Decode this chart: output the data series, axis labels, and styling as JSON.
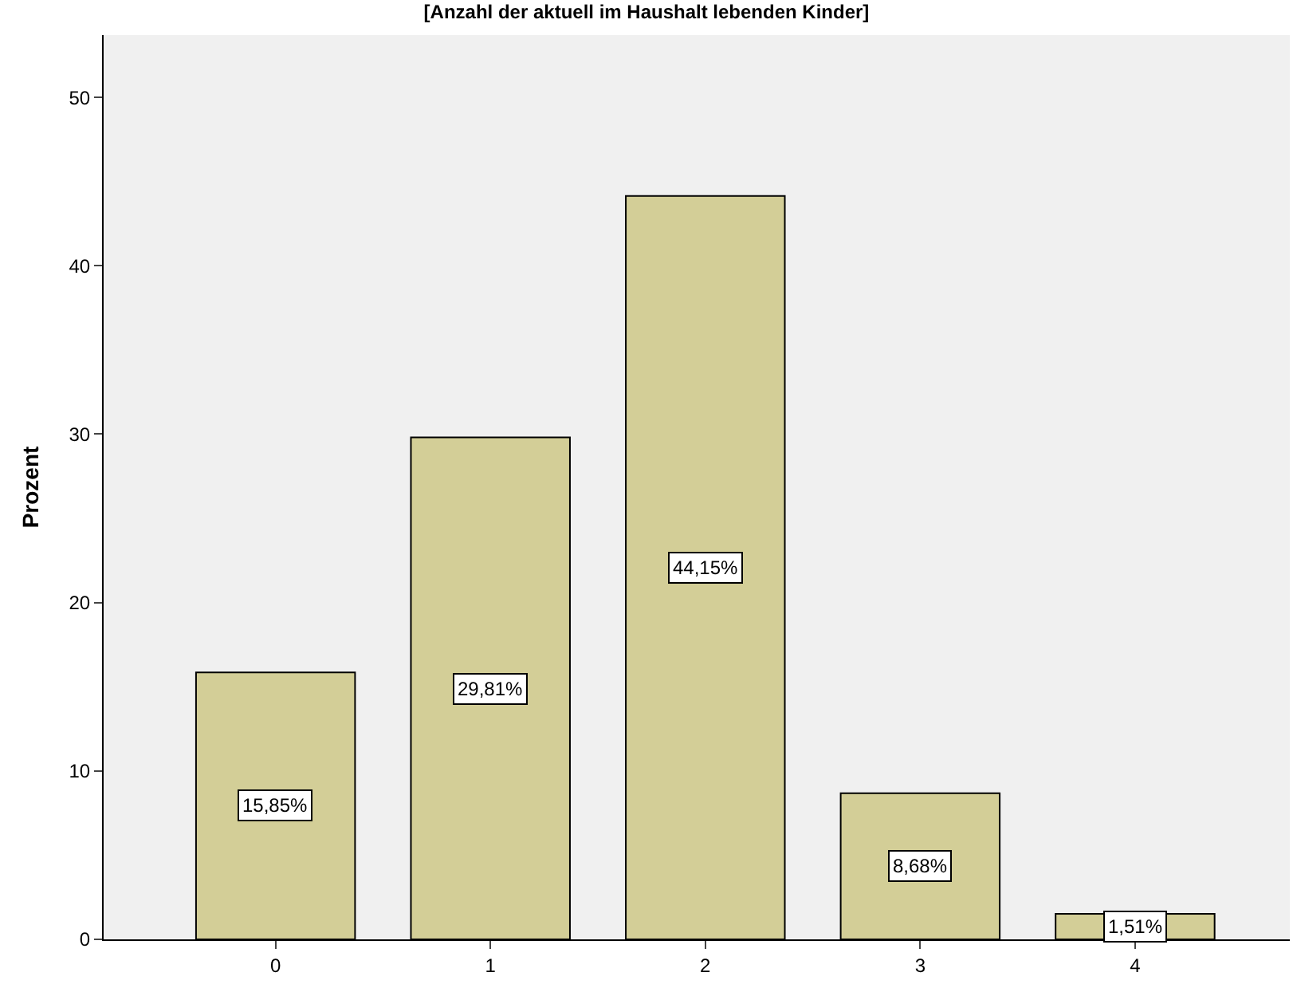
{
  "chart_data": {
    "type": "bar",
    "title": "[Anzahl der aktuell im Haushalt lebenden Kinder]",
    "ylabel": "Prozent",
    "categories": [
      "0",
      "1",
      "2",
      "3",
      "4"
    ],
    "values": [
      15.85,
      29.81,
      44.15,
      8.68,
      1.51
    ],
    "value_labels": [
      "15,85%",
      "29,81%",
      "44,15%",
      "8,68%",
      "1,51%"
    ],
    "color": "#d3ce97",
    "ylim": [
      0,
      53.7
    ],
    "yticks": [
      0,
      10,
      20,
      30,
      40,
      50
    ],
    "grid": false,
    "legend": false
  }
}
